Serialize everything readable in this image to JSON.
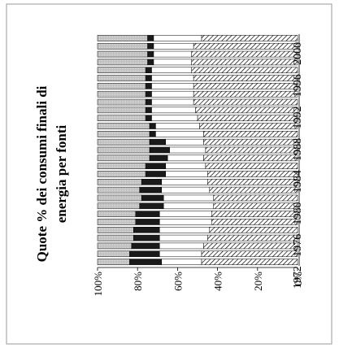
{
  "chart_data": {
    "type": "bar",
    "stacked": true,
    "orientation": "vertical-rotated",
    "title_lines": [
      "Quote % dei consumi finali di",
      "energia per fonti"
    ],
    "xlabel": "",
    "ylabel": "",
    "categories": [
      1972,
      1973,
      1974,
      1975,
      1976,
      1977,
      1978,
      1979,
      1980,
      1981,
      1982,
      1983,
      1984,
      1985,
      1986,
      1987,
      1988,
      1989,
      1990,
      1991,
      1992,
      1993,
      1994,
      1995,
      1996,
      1997,
      1998,
      1999,
      2000
    ],
    "category_tick_labels": [
      "1972",
      "1976",
      "1980",
      "1984",
      "1988",
      "1992",
      "1996",
      "2000"
    ],
    "ylim": [
      0,
      100
    ],
    "y_tick_labels": [
      "0%",
      "20%",
      "40%",
      "60%",
      "80%",
      "100%"
    ],
    "grid": false,
    "legend": "none",
    "series": [
      {
        "pattern": "hatched",
        "values": [
          48,
          48,
          47,
          45,
          44,
          43,
          43,
          42,
          42,
          44,
          45,
          45,
          46,
          47,
          46,
          47,
          47,
          49,
          50,
          51,
          52,
          52,
          52,
          52,
          53,
          53,
          53,
          52,
          48
        ]
      },
      {
        "pattern": "white",
        "values": [
          20,
          21,
          22,
          24,
          25,
          26,
          26,
          25,
          25,
          24,
          23,
          21,
          20,
          18,
          18,
          19,
          24,
          22,
          23,
          22,
          21,
          21,
          21,
          21,
          20,
          19,
          19,
          20,
          24
        ]
      },
      {
        "pattern": "dark",
        "values": [
          16,
          15,
          14,
          13,
          13,
          12,
          12,
          12,
          11,
          11,
          10,
          10,
          10,
          9,
          10,
          8,
          3,
          3,
          3,
          3,
          3,
          3,
          3,
          3,
          3,
          3,
          3,
          3,
          3
        ]
      },
      {
        "pattern": "light-gray",
        "values": [
          16,
          16,
          17,
          18,
          18,
          19,
          19,
          21,
          22,
          21,
          22,
          24,
          24,
          26,
          26,
          26,
          26,
          26,
          24,
          24,
          24,
          24,
          24,
          24,
          24,
          25,
          25,
          25,
          25
        ]
      }
    ],
    "colors": {
      "hatched": "#ffffff",
      "white": "#ffffff",
      "dark": "#1a1a1a",
      "light-gray": "#c8c8c8",
      "frame": "#9a9a9a"
    }
  }
}
